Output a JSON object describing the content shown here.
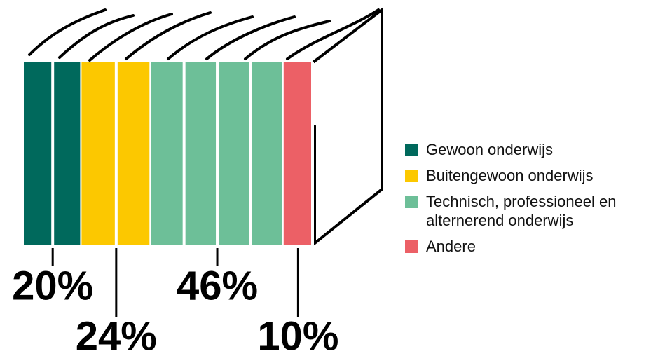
{
  "chart_data": {
    "type": "bar",
    "categories": [
      "Gewoon onderwijs",
      "Buitengewoon onderwijs",
      "Technisch, professioneel en alternerend onderwijs",
      "Andere"
    ],
    "values": [
      20,
      24,
      46,
      10
    ],
    "value_labels": [
      "20%",
      "24%",
      "46%",
      "10%"
    ],
    "colors": [
      "#00695c",
      "#fcc800",
      "#6dbf98",
      "#ec6066"
    ]
  }
}
